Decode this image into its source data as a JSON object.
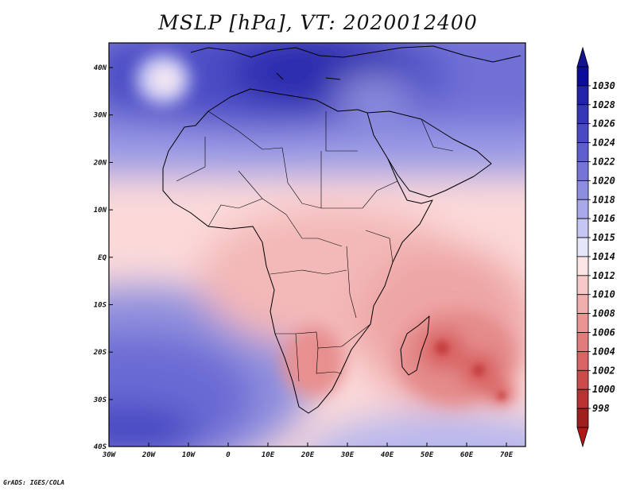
{
  "title": "MSLP [hPa], VT: 2020012400",
  "credit": "GrADS: IGES/COLA",
  "lat_ticks": [
    "40N",
    "30N",
    "20N",
    "10N",
    "EQ",
    "10S",
    "20S",
    "30S",
    "40S"
  ],
  "lon_ticks": [
    "30W",
    "20W",
    "10W",
    "0",
    "10E",
    "20E",
    "30E",
    "40E",
    "50E",
    "60E",
    "70E"
  ],
  "colorbar": {
    "levels": [
      "1030",
      "1028",
      "1026",
      "1024",
      "1022",
      "1020",
      "1018",
      "1016",
      "1015",
      "1014",
      "1012",
      "1010",
      "1008",
      "1006",
      "1004",
      "1002",
      "1000",
      "998"
    ],
    "colors": [
      "#0c0c9a",
      "#2323aa",
      "#3636b8",
      "#4a4ac4",
      "#5e5ecf",
      "#7575d8",
      "#8e8ee0",
      "#a8a8ea",
      "#c6c6f2",
      "#e6e6fa",
      "#fae4e4",
      "#f6c9c9",
      "#f0aeae",
      "#ea9494",
      "#e27b7b",
      "#d86464",
      "#cc4c4c",
      "#b83232",
      "#a01e1e"
    ],
    "top_arrow_color": "#14148f",
    "bottom_arrow_color": "#b01818"
  },
  "map": {
    "region": "Africa",
    "lon_range": [
      -30,
      75
    ],
    "lat_range": [
      -40,
      45
    ],
    "variable": "MSLP",
    "units": "hPa",
    "background_color": "#fbd9d9"
  }
}
